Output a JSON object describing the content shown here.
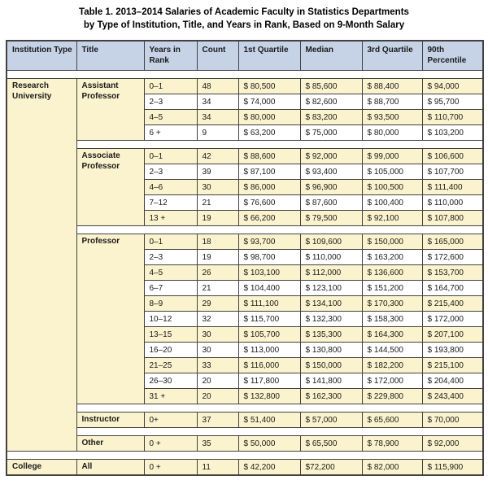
{
  "title": {
    "line1": "Table 1. 2013–2014 Salaries of Academic Faculty in Statistics Departments",
    "line2": "by Type of Institution, Title, and Years in Rank, Based on 9-Month Salary"
  },
  "colors": {
    "header_bg": "#c6d3e7",
    "row_yellow": "#fbf3cd",
    "row_white": "#ffffff",
    "border": "#414141"
  },
  "table": {
    "columns": [
      "Institution Type",
      "Title",
      "Years in Rank",
      "Count",
      "1st Quartile",
      "Median",
      "3rd Quartile",
      "90th Percentile"
    ],
    "groups": [
      {
        "institution": "Research University",
        "sections": [
          {
            "title": "Assistant Professor",
            "rows": [
              {
                "years": "0–1",
                "count": "48",
                "q1": "$ 80,500",
                "median": "$ 85,600",
                "q3": "$ 88,400",
                "p90": "$ 94,000"
              },
              {
                "years": "2–3",
                "count": "34",
                "q1": "$ 74,000",
                "median": "$ 82,600",
                "q3": "$ 88,700",
                "p90": "$ 95,700"
              },
              {
                "years": "4–5",
                "count": "34",
                "q1": "$ 80,000",
                "median": "$ 83,200",
                "q3": "$ 93,500",
                "p90": "$ 110,700"
              },
              {
                "years": "6 +",
                "count": "9",
                "q1": "$ 63,200",
                "median": "$ 75,000",
                "q3": "$ 80,000",
                "p90": "$ 103,200"
              }
            ]
          },
          {
            "title": "Associate Professor",
            "rows": [
              {
                "years": "0–1",
                "count": "42",
                "q1": "$ 88,600",
                "median": "$ 92,000",
                "q3": "$ 99,000",
                "p90": "$ 106,600"
              },
              {
                "years": "2–3",
                "count": "39",
                "q1": "$ 87,100",
                "median": "$ 93,400",
                "q3": "$ 105,000",
                "p90": "$ 107,700"
              },
              {
                "years": "4–6",
                "count": "30",
                "q1": "$ 86,000",
                "median": "$ 96,900",
                "q3": "$ 100,500",
                "p90": "$ 111,400"
              },
              {
                "years": "7–12",
                "count": "21",
                "q1": "$ 76,600",
                "median": "$ 87,600",
                "q3": "$ 100,400",
                "p90": "$ 110,000"
              },
              {
                "years": "13 +",
                "count": "19",
                "q1": "$ 66,200",
                "median": "$ 79,500",
                "q3": "$ 92,100",
                "p90": "$ 107,800"
              }
            ]
          },
          {
            "title": "Professor",
            "rows": [
              {
                "years": "0–1",
                "count": "18",
                "q1": "$ 93,700",
                "median": "$ 109,600",
                "q3": "$ 150,000",
                "p90": "$ 165,000"
              },
              {
                "years": "2–3",
                "count": "19",
                "q1": "$ 98,700",
                "median": "$ 110,000",
                "q3": "$ 163,200",
                "p90": "$ 172,600"
              },
              {
                "years": "4–5",
                "count": "26",
                "q1": "$ 103,100",
                "median": "$ 112,000",
                "q3": "$ 136,600",
                "p90": "$ 153,700"
              },
              {
                "years": "6–7",
                "count": "21",
                "q1": "$ 104,400",
                "median": "$ 123,100",
                "q3": "$ 151,200",
                "p90": "$ 164,700"
              },
              {
                "years": "8–9",
                "count": "29",
                "q1": "$ 111,100",
                "median": "$ 134,100",
                "q3": "$ 170,300",
                "p90": "$ 215,400"
              },
              {
                "years": "10–12",
                "count": "32",
                "q1": "$ 115,700",
                "median": "$ 132,300",
                "q3": "$ 158,300",
                "p90": "$ 172,000"
              },
              {
                "years": "13–15",
                "count": "30",
                "q1": "$ 105,700",
                "median": "$ 135,300",
                "q3": "$ 164,300",
                "p90": "$ 207,100"
              },
              {
                "years": "16–20",
                "count": "30",
                "q1": "$ 113,000",
                "median": "$ 130,800",
                "q3": "$ 144,500",
                "p90": "$ 193,800"
              },
              {
                "years": "21–25",
                "count": "33",
                "q1": "$ 116,000",
                "median": "$ 150,000",
                "q3": "$ 182,200",
                "p90": "$ 215,100"
              },
              {
                "years": "26–30",
                "count": "20",
                "q1": "$ 117,800",
                "median": "$ 141,800",
                "q3": "$ 172,000",
                "p90": "$ 204,400"
              },
              {
                "years": "31 +",
                "count": "20",
                "q1": "$ 132,800",
                "median": "$ 162,300",
                "q3": "$ 229,800",
                "p90": "$ 243,400"
              }
            ]
          },
          {
            "title": "Instructor",
            "rows": [
              {
                "years": "0+",
                "count": "37",
                "q1": "$ 51,400",
                "median": "$ 57,000",
                "q3": "$ 65,600",
                "p90": "$ 70,000"
              }
            ]
          },
          {
            "title": "Other",
            "rows": [
              {
                "years": "0 +",
                "count": "35",
                "q1": "$ 50,000",
                "median": "$ 65,500",
                "q3": "$ 78,900",
                "p90": "$ 92,000"
              }
            ]
          }
        ]
      },
      {
        "institution": "College",
        "sections": [
          {
            "title": "All",
            "rows": [
              {
                "years": "0 +",
                "count": "11",
                "q1": "$ 42,200",
                "median": "$72,200",
                "q3": "$ 82,000",
                "p90": "$ 115,900"
              }
            ]
          }
        ]
      }
    ]
  }
}
